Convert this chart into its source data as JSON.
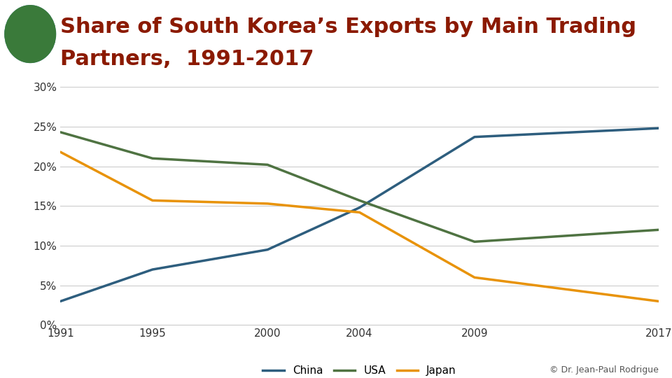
{
  "title_line1": "Share of South Korea’s Exports by Main Trading",
  "title_line2": "Partners,  1991-2017",
  "title_color": "#8B1A00",
  "title_fontsize": 22,
  "header_bar_color": "#E8930A",
  "background_color": "#FFFFFF",
  "chart_bg_color": "#FFFFFF",
  "x_ticks": [
    1991,
    1995,
    2000,
    2004,
    2009,
    2017
  ],
  "ylim": [
    0,
    0.3
  ],
  "yticks": [
    0.0,
    0.05,
    0.1,
    0.15,
    0.2,
    0.25,
    0.3
  ],
  "ytick_labels": [
    "0%",
    "5%",
    "10%",
    "15%",
    "20%",
    "25%",
    "30%"
  ],
  "grid_color": "#CCCCCC",
  "series": {
    "China": {
      "color": "#2E5E7E",
      "data_x": [
        1991,
        1995,
        2000,
        2004,
        2009,
        2017
      ],
      "data_y": [
        0.03,
        0.07,
        0.095,
        0.148,
        0.237,
        0.248
      ]
    },
    "USA": {
      "color": "#4F7342",
      "data_x": [
        1991,
        1995,
        2000,
        2004,
        2009,
        2017
      ],
      "data_y": [
        0.243,
        0.21,
        0.202,
        0.157,
        0.105,
        0.12
      ]
    },
    "Japan": {
      "color": "#E8930A",
      "data_x": [
        1991,
        1995,
        2000,
        2004,
        2009,
        2017
      ],
      "data_y": [
        0.218,
        0.157,
        0.153,
        0.142,
        0.06,
        0.03
      ]
    }
  },
  "legend_labels": [
    "China",
    "USA",
    "Japan"
  ],
  "footnote": "© Dr. Jean-Paul Rodrigue",
  "footnote_color": "#555555",
  "footnote_fontsize": 9
}
